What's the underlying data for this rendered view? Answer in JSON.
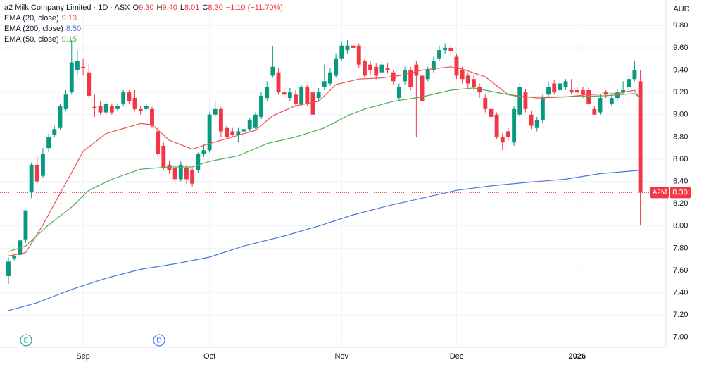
{
  "chart_data": {
    "type": "candlestick",
    "header": {
      "title": "a2 Milk Company Limited · 1D · ASX",
      "ohlc": [
        {
          "key": "O",
          "value": "9.30"
        },
        {
          "key": "H",
          "value": "9.40"
        },
        {
          "key": "L",
          "value": "8.01"
        },
        {
          "key": "C",
          "value": "8.30"
        }
      ],
      "change": "−1.10 (−11.70%)"
    },
    "currency": "AUD",
    "symbol": "A2M",
    "price_label": "8.30",
    "up_color": "#089981",
    "down_color": "#f23645",
    "open": [
      7.55,
      7.71,
      7.74,
      7.88,
      8.3,
      8.55,
      8.45,
      8.7,
      8.82,
      8.88,
      9.05,
      9.2,
      9.4,
      9.43,
      9.38,
      9.07,
      9.08,
      9.02,
      9.08,
      9.05,
      9.1,
      9.2,
      9.15,
      9.05,
      9.05,
      9.05,
      8.85,
      8.72,
      8.55,
      8.52,
      8.42,
      8.52,
      8.5,
      8.5,
      8.65,
      8.68,
      9.0,
      9.05,
      8.88,
      8.85,
      8.82,
      8.85,
      8.87,
      8.88,
      8.98,
      9.15,
      9.35,
      9.38,
      9.2,
      9.15,
      9.18,
      9.1,
      9.25,
      9.2,
      9.15,
      9.25,
      9.28,
      9.35,
      9.5,
      9.58,
      9.62,
      9.62,
      9.48,
      9.45,
      9.43,
      9.38,
      9.42,
      9.38,
      9.15,
      9.3,
      9.4,
      9.45,
      9.35,
      9.32,
      9.4,
      9.5,
      9.58,
      9.6,
      9.52,
      9.4,
      9.35,
      9.32,
      9.25,
      9.15,
      9.05,
      9.0,
      8.8,
      8.85,
      8.75,
      9.0,
      9.2,
      9.0,
      8.88,
      8.95,
      9.18,
      9.28,
      9.22,
      9.25,
      9.22,
      9.22,
      9.22,
      9.22,
      9.05,
      9.02,
      9.2,
      9.1,
      9.15,
      9.2,
      9.25,
      9.32,
      9.3
    ],
    "high": [
      7.72,
      7.75,
      7.88,
      8.14,
      8.57,
      8.63,
      8.7,
      8.83,
      8.9,
      9.1,
      9.22,
      9.67,
      9.58,
      9.5,
      9.45,
      9.18,
      9.12,
      9.12,
      9.1,
      9.1,
      9.22,
      9.22,
      9.22,
      9.08,
      9.1,
      9.07,
      8.88,
      8.75,
      8.58,
      8.55,
      8.58,
      8.55,
      8.52,
      8.66,
      8.74,
      9.02,
      9.12,
      9.07,
      8.9,
      8.88,
      8.88,
      8.92,
      8.97,
      9.02,
      9.2,
      9.3,
      9.62,
      9.42,
      9.24,
      9.24,
      9.22,
      9.27,
      9.27,
      9.22,
      9.24,
      9.45,
      9.42,
      9.55,
      9.66,
      9.67,
      9.64,
      9.64,
      9.5,
      9.48,
      9.46,
      9.48,
      9.46,
      9.4,
      9.28,
      9.43,
      9.43,
      9.48,
      9.38,
      9.43,
      9.52,
      9.62,
      9.64,
      9.62,
      9.55,
      9.43,
      9.38,
      9.35,
      9.28,
      9.18,
      9.08,
      9.02,
      8.83,
      8.88,
      9.08,
      9.28,
      9.23,
      9.03,
      8.98,
      9.18,
      9.3,
      9.31,
      9.31,
      9.32,
      9.32,
      9.25,
      9.25,
      9.25,
      9.08,
      9.18,
      9.22,
      9.18,
      9.23,
      9.3,
      9.35,
      9.48,
      9.4
    ],
    "low": [
      7.48,
      7.69,
      7.72,
      7.85,
      8.25,
      8.38,
      8.43,
      8.66,
      8.8,
      8.86,
      9.03,
      9.18,
      9.36,
      9.35,
      9.15,
      8.98,
      9.0,
      9.0,
      9.0,
      9.03,
      9.08,
      9.1,
      9.03,
      9.0,
      9.03,
      8.88,
      8.62,
      8.5,
      8.47,
      8.38,
      8.4,
      8.38,
      8.35,
      8.48,
      8.62,
      8.66,
      8.98,
      8.8,
      8.78,
      8.8,
      8.75,
      8.7,
      8.84,
      8.86,
      8.96,
      9.12,
      9.33,
      9.18,
      9.15,
      9.12,
      9.07,
      9.08,
      9.08,
      8.98,
      9.12,
      9.22,
      9.26,
      9.33,
      9.48,
      9.55,
      9.56,
      9.42,
      9.33,
      9.36,
      9.32,
      9.35,
      9.37,
      9.27,
      9.12,
      9.27,
      9.22,
      8.8,
      9.1,
      9.3,
      9.38,
      9.48,
      9.55,
      9.54,
      9.32,
      9.28,
      9.24,
      9.22,
      9.15,
      9.02,
      8.95,
      8.78,
      8.68,
      8.77,
      8.72,
      8.98,
      9.02,
      8.87,
      8.85,
      8.92,
      9.15,
      9.18,
      9.2,
      9.22,
      9.18,
      9.18,
      9.15,
      9.08,
      9.0,
      9.0,
      9.15,
      9.08,
      9.13,
      9.18,
      9.22,
      9.3,
      8.01
    ],
    "close": [
      7.68,
      7.73,
      7.87,
      8.14,
      8.55,
      8.4,
      8.65,
      8.8,
      8.87,
      9.08,
      9.18,
      9.47,
      9.48,
      9.42,
      9.17,
      9.06,
      9.02,
      9.1,
      9.02,
      9.08,
      9.2,
      9.12,
      9.05,
      9.03,
      9.08,
      8.9,
      8.65,
      8.52,
      8.5,
      8.42,
      8.55,
      8.42,
      8.38,
      8.65,
      8.68,
      9.0,
      9.05,
      8.85,
      8.8,
      8.82,
      8.85,
      8.87,
      8.95,
      9.0,
      9.17,
      9.25,
      9.43,
      9.2,
      9.18,
      9.2,
      9.1,
      9.25,
      9.1,
      9.0,
      9.2,
      9.3,
      9.38,
      9.5,
      9.62,
      9.62,
      9.6,
      9.45,
      9.35,
      9.4,
      9.35,
      9.45,
      9.4,
      9.3,
      9.25,
      9.4,
      9.25,
      9.35,
      9.12,
      9.4,
      9.48,
      9.58,
      9.6,
      9.57,
      9.35,
      9.32,
      9.28,
      9.25,
      9.2,
      9.05,
      8.98,
      8.8,
      8.75,
      8.8,
      9.05,
      9.25,
      9.05,
      8.9,
      8.95,
      9.15,
      9.25,
      9.2,
      9.28,
      9.3,
      9.2,
      9.2,
      9.18,
      9.1,
      9.0,
      9.15,
      9.18,
      9.15,
      9.2,
      9.22,
      9.32,
      9.4,
      8.3
    ],
    "series": [
      {
        "name": "EMA (20, close)",
        "legend_value": "9.13",
        "color": "#f05350",
        "x": [
          0,
          3,
          6,
          8,
          11,
          13,
          17,
          23,
          25,
          28,
          32,
          35,
          39,
          43,
          46,
          50,
          54,
          57,
          61,
          65,
          68,
          72,
          77,
          79,
          83,
          87,
          92,
          97,
          101,
          106,
          109,
          110
        ],
        "values": [
          7.73,
          7.76,
          8.01,
          8.2,
          8.48,
          8.67,
          8.83,
          8.92,
          8.91,
          8.77,
          8.69,
          8.74,
          8.8,
          8.86,
          8.99,
          9.08,
          9.12,
          9.27,
          9.32,
          9.33,
          9.35,
          9.4,
          9.43,
          9.41,
          9.34,
          9.18,
          9.15,
          9.16,
          9.18,
          9.19,
          9.22,
          9.13
        ]
      },
      {
        "name": "EMA (200, close)",
        "legend_value": "8.50",
        "color": "#4f73e8",
        "x": [
          0,
          5,
          11,
          17,
          23,
          29,
          35,
          41,
          48,
          54,
          60,
          66,
          72,
          78,
          84,
          90,
          97,
          103,
          110
        ],
        "values": [
          7.24,
          7.31,
          7.43,
          7.53,
          7.61,
          7.66,
          7.72,
          7.82,
          7.91,
          8.0,
          8.1,
          8.18,
          8.25,
          8.32,
          8.36,
          8.39,
          8.42,
          8.47,
          8.5
        ]
      },
      {
        "name": "EMA (50, close)",
        "legend_value": "9.15",
        "color": "#4caf50",
        "x": [
          0,
          3,
          7,
          11,
          14,
          18,
          23,
          28,
          32,
          35,
          40,
          45,
          50,
          55,
          59,
          62,
          67,
          72,
          77,
          81,
          84,
          89,
          97,
          104,
          109,
          110
        ],
        "values": [
          7.77,
          7.82,
          8.01,
          8.17,
          8.32,
          8.42,
          8.51,
          8.53,
          8.53,
          8.58,
          8.63,
          8.74,
          8.8,
          8.88,
          8.99,
          9.05,
          9.12,
          9.16,
          9.22,
          9.24,
          9.21,
          9.16,
          9.16,
          9.17,
          9.19,
          9.15
        ]
      }
    ],
    "xlim": [
      -1.47,
      114.46
    ],
    "xticks": [
      {
        "value": 13,
        "label": "Sep"
      },
      {
        "value": 35,
        "label": "Oct"
      },
      {
        "value": 58,
        "label": "Nov"
      },
      {
        "value": 78,
        "label": "Dec"
      },
      {
        "value": 99,
        "label": "2026"
      }
    ],
    "ylim": [
      6.91,
      10.03
    ],
    "yticks": [
      {
        "value": 9.8,
        "label": "9.80"
      },
      {
        "value": 9.6,
        "label": "9.60"
      },
      {
        "value": 9.4,
        "label": "9.40"
      },
      {
        "value": 9.2,
        "label": "9.20"
      },
      {
        "value": 9,
        "label": "9.00"
      },
      {
        "value": 8.8,
        "label": "8.80"
      },
      {
        "value": 8.6,
        "label": "8.60"
      },
      {
        "value": 8.4,
        "label": "8.40"
      },
      {
        "value": 8.2,
        "label": "8.20"
      },
      {
        "value": 8,
        "label": "8.00"
      },
      {
        "value": 7.8,
        "label": "7.80"
      },
      {
        "value": 7.6,
        "label": "7.60"
      },
      {
        "value": 7.4,
        "label": "7.40"
      },
      {
        "value": 7.2,
        "label": "7.20"
      },
      {
        "value": 7,
        "label": "7.00"
      }
    ],
    "grid": true,
    "events": [
      {
        "label": "E"
      },
      {
        "label": "D"
      }
    ]
  }
}
